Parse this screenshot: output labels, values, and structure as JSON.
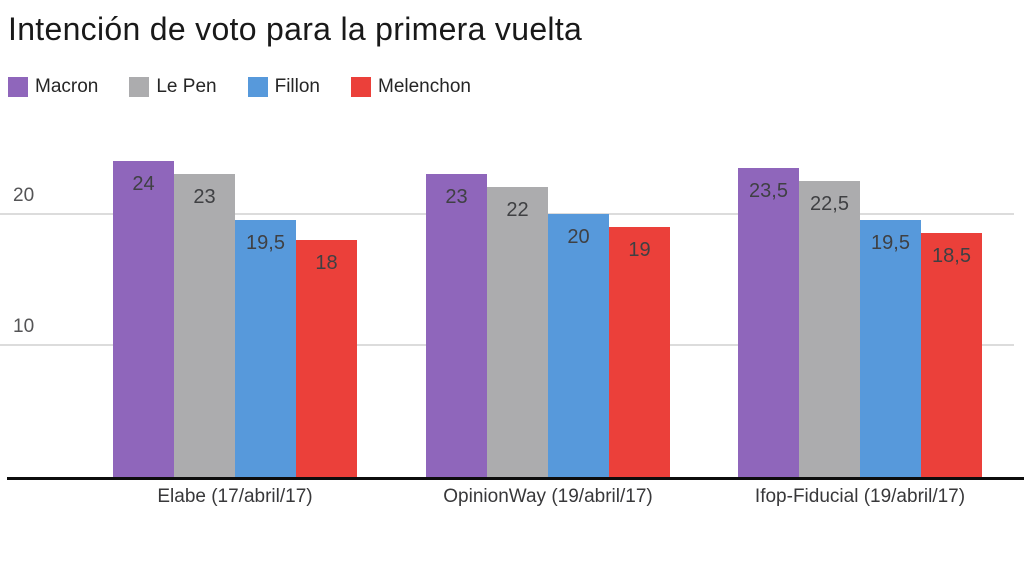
{
  "title": "Intención de voto para la primera vuelta",
  "chart_data": {
    "type": "bar",
    "title": "Intención de voto para la primera vuelta",
    "categories": [
      "Elabe (17/abril/17)",
      "OpinionWay (19/abril/17)",
      "Ifop-Fiducial (19/abril/17)"
    ],
    "series": [
      {
        "name": "Macron",
        "color": "#8f66bb",
        "values": [
          24,
          23,
          23.5
        ],
        "labels": [
          "24",
          "23",
          "23,5"
        ]
      },
      {
        "name": "Le Pen",
        "color": "#acacae",
        "values": [
          23,
          22,
          22.5
        ],
        "labels": [
          "23",
          "22",
          "22,5"
        ]
      },
      {
        "name": "Fillon",
        "color": "#5799db",
        "values": [
          19.5,
          20,
          19.5
        ],
        "labels": [
          "19,5",
          "20",
          "19,5"
        ]
      },
      {
        "name": "Melenchon",
        "color": "#eb403a",
        "values": [
          18,
          19,
          18.5
        ],
        "labels": [
          "18",
          "19",
          "18,5"
        ]
      }
    ],
    "xlabel": "",
    "ylabel": "",
    "yticks": [
      10,
      20
    ],
    "ylim": [
      0,
      27
    ],
    "grid": "horizontal-light",
    "legend_position": "top-left",
    "value_labels": "inside-top",
    "decimal_separator": ","
  }
}
